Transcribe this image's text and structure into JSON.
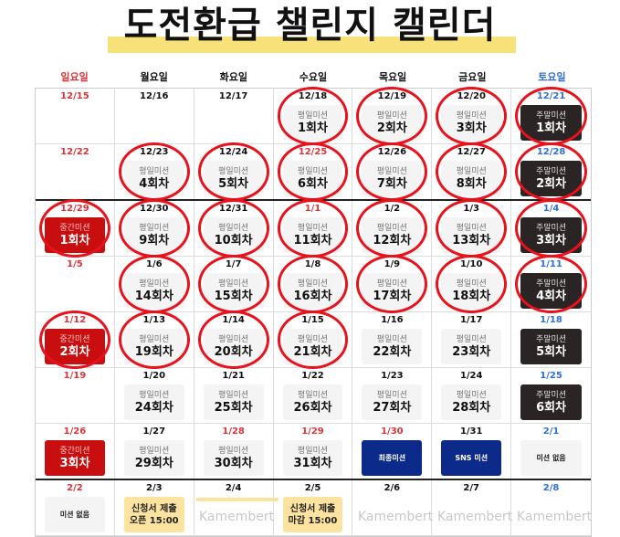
{
  "title": "도전환급 챌린지 캘린더",
  "colors": {
    "sunday": "#d9343a",
    "saturday": "#2f6fd6",
    "holiday": "#d9343a",
    "weekday": "#111111",
    "circle": "#e8121c",
    "highlight": "#f7e27a"
  },
  "weekdays": [
    {
      "label": "일요일",
      "color": "#d9343a"
    },
    {
      "label": "월요일",
      "color": "#111"
    },
    {
      "label": "화요일",
      "color": "#111"
    },
    {
      "label": "수요일",
      "color": "#111"
    },
    {
      "label": "목요일",
      "color": "#111"
    },
    {
      "label": "금요일",
      "color": "#111"
    },
    {
      "label": "토요일",
      "color": "#2f6fd6"
    }
  ],
  "watermark": "Kamembert",
  "weeks": [
    [
      {
        "date": "12/15",
        "c": "#d9343a"
      },
      {
        "date": "12/16"
      },
      {
        "date": "12/17"
      },
      {
        "date": "12/18",
        "m": [
          "weekday",
          "평일미션",
          "1회차"
        ],
        "o": 1
      },
      {
        "date": "12/19",
        "m": [
          "weekday",
          "평일미션",
          "2회차"
        ],
        "o": 1
      },
      {
        "date": "12/20",
        "m": [
          "weekday",
          "평일미션",
          "3회차"
        ],
        "o": 1
      },
      {
        "date": "12/21",
        "c": "#2f6fd6",
        "m": [
          "weekend",
          "주말미션",
          "1회차"
        ],
        "o": 1
      }
    ],
    [
      {
        "date": "12/22",
        "c": "#d9343a"
      },
      {
        "date": "12/23",
        "m": [
          "weekday",
          "평일미션",
          "4회차"
        ],
        "o": 1
      },
      {
        "date": "12/24",
        "m": [
          "weekday",
          "평일미션",
          "5회차"
        ],
        "o": 1
      },
      {
        "date": "12/25",
        "c": "#d9343a",
        "m": [
          "weekday",
          "평일미션",
          "6회차"
        ],
        "o": 1
      },
      {
        "date": "12/26",
        "m": [
          "weekday",
          "평일미션",
          "7회차"
        ],
        "o": 1
      },
      {
        "date": "12/27",
        "m": [
          "weekday",
          "평일미션",
          "8회차"
        ],
        "o": 1
      },
      {
        "date": "12/28",
        "c": "#2f6fd6",
        "m": [
          "weekend",
          "주말미션",
          "2회차"
        ],
        "o": 1
      }
    ],
    [
      {
        "date": "12/29",
        "c": "#d9343a",
        "m": [
          "mid",
          "중간미션",
          "1회차"
        ],
        "o": 1
      },
      {
        "date": "12/30",
        "m": [
          "weekday",
          "평일미션",
          "9회차"
        ],
        "o": 1
      },
      {
        "date": "12/31",
        "m": [
          "weekday",
          "평일미션",
          "10회차"
        ],
        "o": 1
      },
      {
        "date": "1/1",
        "c": "#d9343a",
        "m": [
          "weekday",
          "평일미션",
          "11회차"
        ],
        "o": 1
      },
      {
        "date": "1/2",
        "m": [
          "weekday",
          "평일미션",
          "12회차"
        ],
        "o": 1
      },
      {
        "date": "1/3",
        "m": [
          "weekday",
          "평일미션",
          "13회차"
        ],
        "o": 1
      },
      {
        "date": "1/4",
        "c": "#2f6fd6",
        "m": [
          "weekend",
          "주말미션",
          "3회차"
        ],
        "o": 1
      }
    ],
    [
      {
        "date": "1/5",
        "c": "#d9343a"
      },
      {
        "date": "1/6",
        "m": [
          "weekday",
          "평일미션",
          "14회차"
        ],
        "o": 1
      },
      {
        "date": "1/7",
        "m": [
          "weekday",
          "평일미션",
          "15회차"
        ],
        "o": 1
      },
      {
        "date": "1/8",
        "m": [
          "weekday",
          "평일미션",
          "16회차"
        ],
        "o": 1
      },
      {
        "date": "1/9",
        "m": [
          "weekday",
          "평일미션",
          "17회차"
        ],
        "o": 1
      },
      {
        "date": "1/10",
        "m": [
          "weekday",
          "평일미션",
          "18회차"
        ],
        "o": 1
      },
      {
        "date": "1/11",
        "c": "#2f6fd6",
        "m": [
          "weekend",
          "주말미션",
          "4회차"
        ],
        "o": 1
      }
    ],
    [
      {
        "date": "1/12",
        "c": "#d9343a",
        "m": [
          "mid",
          "중간미션",
          "2회차"
        ],
        "o": 1
      },
      {
        "date": "1/13",
        "m": [
          "weekday",
          "평일미션",
          "19회차"
        ],
        "o": 1
      },
      {
        "date": "1/14",
        "m": [
          "weekday",
          "평일미션",
          "20회차"
        ],
        "o": 1
      },
      {
        "date": "1/15",
        "m": [
          "weekday",
          "평일미션",
          "21회차"
        ],
        "o": 1
      },
      {
        "date": "1/16",
        "m": [
          "weekday",
          "평일미션",
          "22회차"
        ]
      },
      {
        "date": "1/17",
        "m": [
          "weekday",
          "평일미션",
          "23회차"
        ]
      },
      {
        "date": "1/18",
        "c": "#2f6fd6",
        "m": [
          "weekend",
          "주말미션",
          "5회차"
        ]
      }
    ],
    [
      {
        "date": "1/19",
        "c": "#d9343a"
      },
      {
        "date": "1/20",
        "m": [
          "weekday",
          "평일미션",
          "24회차"
        ]
      },
      {
        "date": "1/21",
        "m": [
          "weekday",
          "평일미션",
          "25회차"
        ]
      },
      {
        "date": "1/22",
        "m": [
          "weekday",
          "평일미션",
          "26회차"
        ]
      },
      {
        "date": "1/23",
        "m": [
          "weekday",
          "평일미션",
          "27회차"
        ]
      },
      {
        "date": "1/24",
        "m": [
          "weekday",
          "평일미션",
          "28회차"
        ]
      },
      {
        "date": "1/25",
        "c": "#2f6fd6",
        "m": [
          "weekend",
          "주말미션",
          "6회차"
        ]
      }
    ],
    [
      {
        "date": "1/26",
        "c": "#d9343a",
        "m": [
          "mid",
          "중간미션",
          "3회차"
        ]
      },
      {
        "date": "1/27",
        "m": [
          "weekday",
          "평일미션",
          "29회차"
        ]
      },
      {
        "date": "1/28",
        "c": "#d9343a",
        "m": [
          "weekday",
          "평일미션",
          "30회차"
        ]
      },
      {
        "date": "1/29",
        "c": "#d9343a",
        "m": [
          "weekday",
          "평일미션",
          "31회차"
        ]
      },
      {
        "date": "1/30",
        "c": "#d9343a",
        "m": [
          "final",
          "최종미션",
          ""
        ]
      },
      {
        "date": "1/31",
        "m": [
          "final",
          "SNS 미션",
          ""
        ]
      },
      {
        "date": "2/1",
        "c": "#2f6fd6",
        "m": [
          "none",
          "미션 없음",
          ""
        ]
      }
    ],
    [
      {
        "date": "2/2",
        "c": "#d9343a",
        "m": [
          "none",
          "미션 없음",
          ""
        ]
      },
      {
        "date": "2/3",
        "m": [
          "apply",
          "신청서 제출",
          "오픈 15:00"
        ]
      },
      {
        "date": "2/4"
      },
      {
        "date": "2/5",
        "m": [
          "apply",
          "신청서 제출",
          "마감 15:00"
        ]
      },
      {
        "date": "2/6"
      },
      {
        "date": "2/7"
      },
      {
        "date": "2/8",
        "c": "#2f6fd6"
      }
    ]
  ]
}
